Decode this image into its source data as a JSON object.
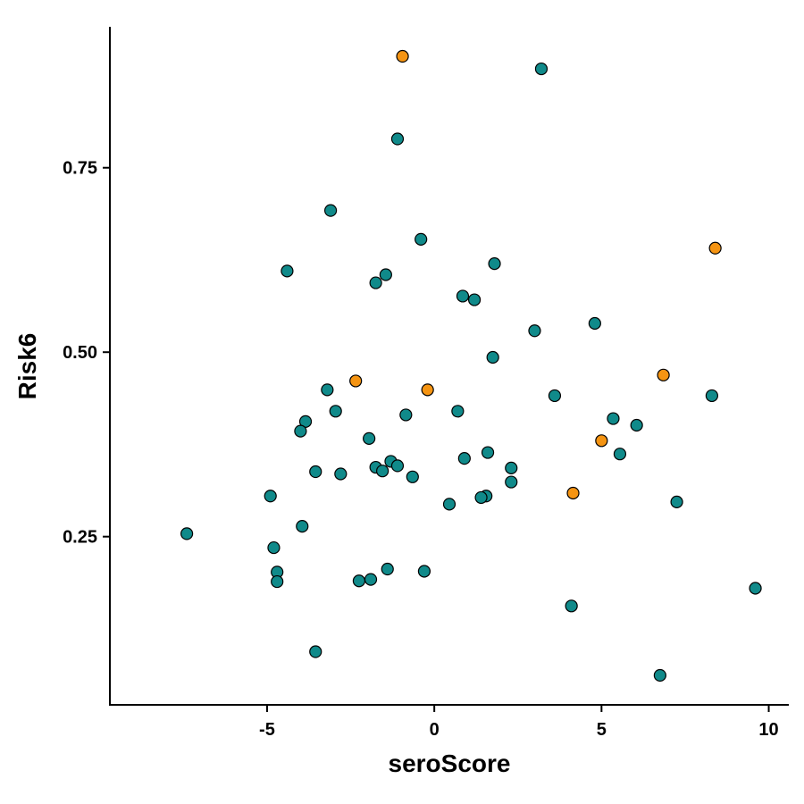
{
  "chart_data": {
    "type": "scatter",
    "title": "",
    "xlabel": "seroScore",
    "ylabel": "Risk6",
    "xlim": [
      -9.7,
      10.6
    ],
    "ylim": [
      0.022,
      0.941
    ],
    "x_ticks": [
      -5,
      0,
      5,
      10
    ],
    "y_ticks": [
      0.25,
      0.5,
      0.75
    ],
    "x_tick_labels": [
      "-5",
      "0",
      "5",
      "10"
    ],
    "y_tick_labels": [
      "0.25",
      "0.50",
      "0.75"
    ],
    "grid": false,
    "legend": "none",
    "colors": {
      "teal": "#108a8a",
      "orange": "#f59412",
      "outline": "#000000",
      "axis": "#000000"
    },
    "series": [
      {
        "color": "teal",
        "points": [
          [
            3.2,
            0.884
          ],
          [
            -1.1,
            0.789
          ],
          [
            -3.1,
            0.692
          ],
          [
            -0.4,
            0.653
          ],
          [
            -4.4,
            0.61
          ],
          [
            -1.45,
            0.605
          ],
          [
            -1.75,
            0.594
          ],
          [
            1.8,
            0.62
          ],
          [
            0.85,
            0.576
          ],
          [
            1.2,
            0.571
          ],
          [
            4.8,
            0.539
          ],
          [
            3.0,
            0.529
          ],
          [
            1.75,
            0.493
          ],
          [
            -3.2,
            0.449
          ],
          [
            3.6,
            0.441
          ],
          [
            8.3,
            0.441
          ],
          [
            -2.95,
            0.42
          ],
          [
            -3.85,
            0.406
          ],
          [
            -0.85,
            0.415
          ],
          [
            0.7,
            0.42
          ],
          [
            5.35,
            0.41
          ],
          [
            6.05,
            0.401
          ],
          [
            -4.0,
            0.393
          ],
          [
            -1.95,
            0.383
          ],
          [
            1.6,
            0.364
          ],
          [
            0.9,
            0.356
          ],
          [
            5.55,
            0.362
          ],
          [
            -1.3,
            0.352
          ],
          [
            -1.75,
            0.344
          ],
          [
            -1.1,
            0.346
          ],
          [
            -1.55,
            0.339
          ],
          [
            -3.55,
            0.338
          ],
          [
            -2.8,
            0.335
          ],
          [
            -0.65,
            0.331
          ],
          [
            2.3,
            0.343
          ],
          [
            2.3,
            0.324
          ],
          [
            -4.9,
            0.305
          ],
          [
            1.55,
            0.305
          ],
          [
            1.4,
            0.303
          ],
          [
            0.45,
            0.294
          ],
          [
            7.25,
            0.297
          ],
          [
            -7.4,
            0.254
          ],
          [
            -3.95,
            0.264
          ],
          [
            -4.8,
            0.235
          ],
          [
            -4.7,
            0.202
          ],
          [
            -4.7,
            0.189
          ],
          [
            -1.4,
            0.206
          ],
          [
            -0.3,
            0.203
          ],
          [
            -2.25,
            0.19
          ],
          [
            -1.9,
            0.192
          ],
          [
            4.1,
            0.156
          ],
          [
            9.6,
            0.18
          ],
          [
            -3.55,
            0.094
          ],
          [
            6.75,
            0.062
          ]
        ]
      },
      {
        "color": "orange",
        "points": [
          [
            -0.95,
            0.901
          ],
          [
            8.4,
            0.641
          ],
          [
            6.85,
            0.469
          ],
          [
            -2.35,
            0.461
          ],
          [
            -0.2,
            0.449
          ],
          [
            5.0,
            0.38
          ],
          [
            4.15,
            0.309
          ]
        ]
      }
    ]
  }
}
